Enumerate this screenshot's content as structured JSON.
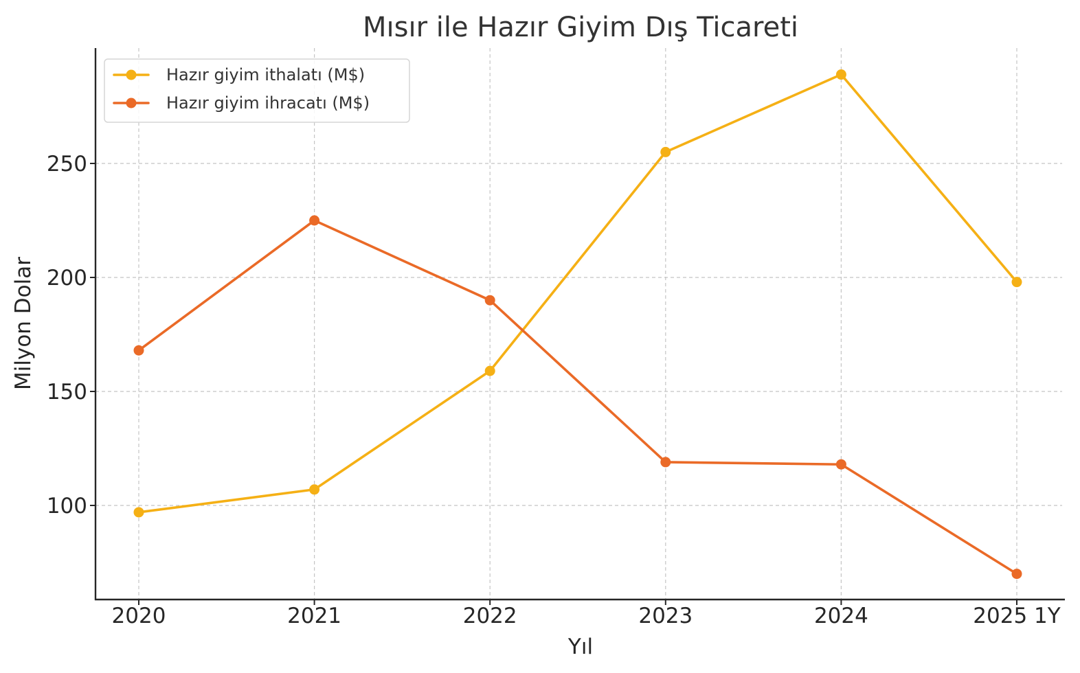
{
  "chart_data": {
    "type": "line",
    "title": "Mısır ile Hazır Giyim Dış Ticareti",
    "xlabel": "Yıl",
    "ylabel": "Milyon Dolar",
    "categories": [
      "2020",
      "2021",
      "2022",
      "2023",
      "2024",
      "2025 1Y"
    ],
    "ylim": [
      59,
      299
    ],
    "yticks": [
      100,
      150,
      200,
      250
    ],
    "grid": true,
    "legend_position": "top-left",
    "series": [
      {
        "name": "Hazır giyim ithalatı (M$)",
        "color": "#F5B015",
        "marker": "circle",
        "values": [
          97,
          107,
          159,
          255,
          289,
          198
        ]
      },
      {
        "name": "Hazır giyim ihracatı (M$)",
        "color": "#EA6A27",
        "marker": "circle",
        "values": [
          168,
          225,
          190,
          119,
          118,
          70
        ]
      }
    ]
  }
}
